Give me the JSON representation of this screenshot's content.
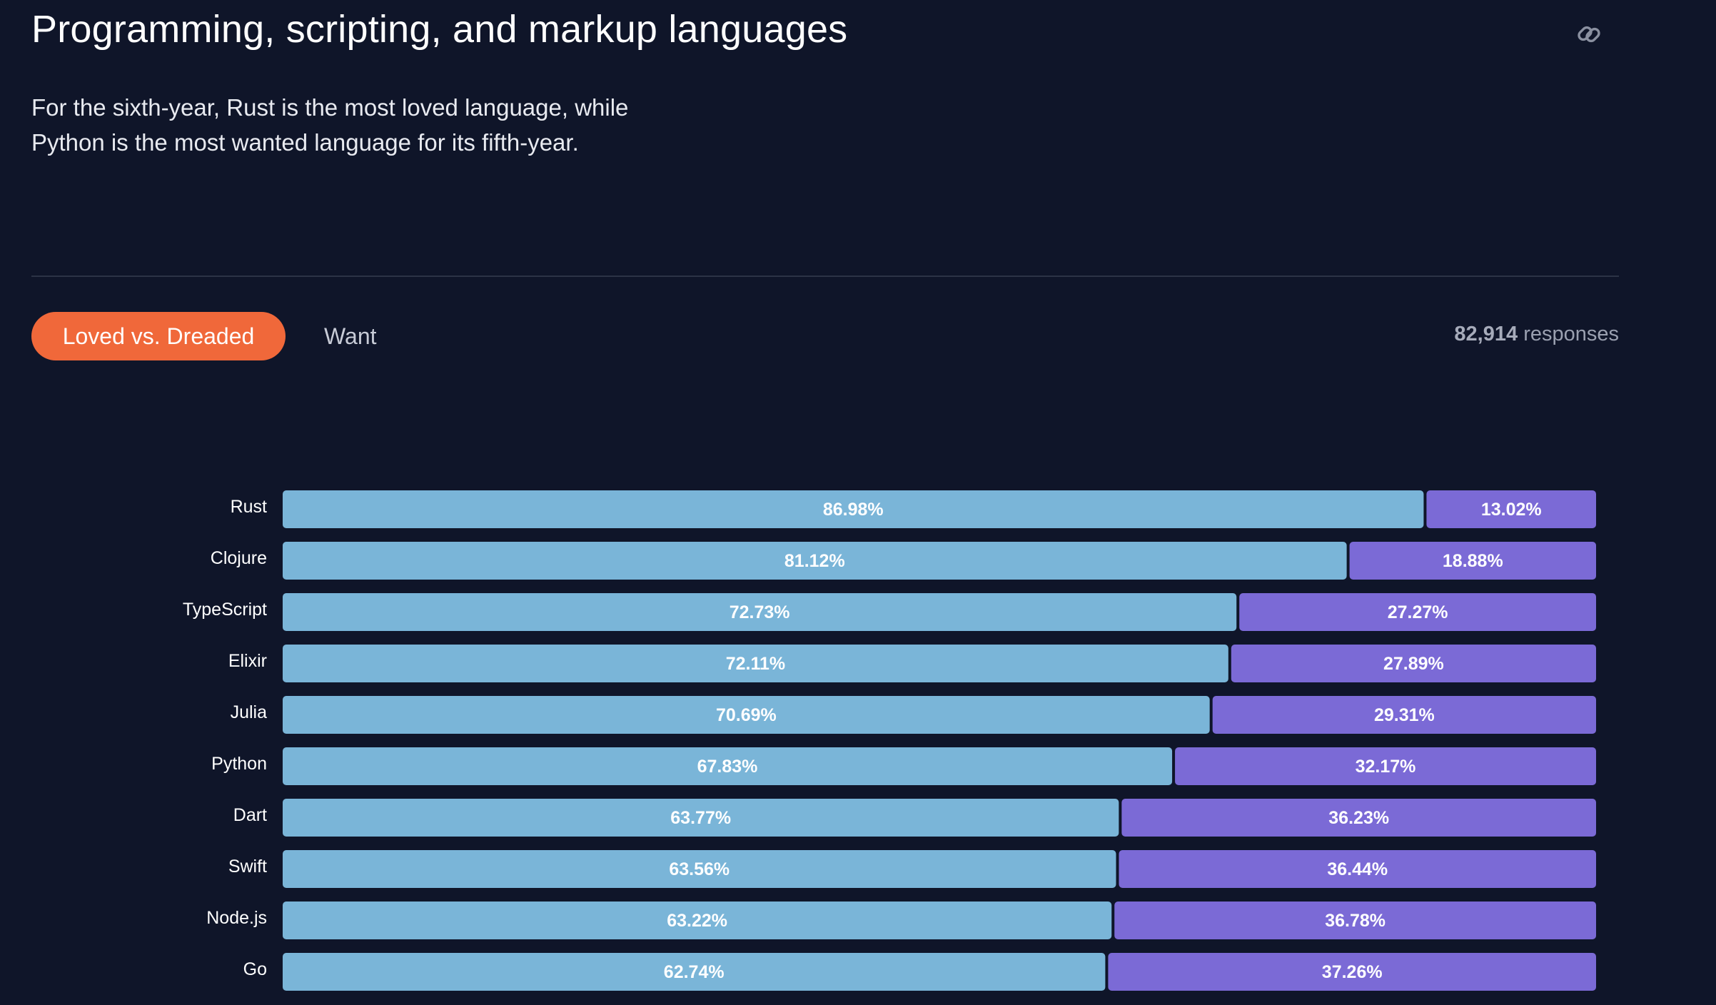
{
  "header": {
    "title": "Programming, scripting, and markup languages",
    "link_icon": "link-icon",
    "description": "For the sixth-year, Rust is the most loved language, while Python is the most wanted language for its fifth-year."
  },
  "tabs": [
    {
      "label": "Loved vs. Dreaded",
      "active": true
    },
    {
      "label": "Want",
      "active": false
    }
  ],
  "responses": {
    "count": "82,914",
    "label": "responses"
  },
  "colors": {
    "background": "#0f1529",
    "loved": "#7ab5d8",
    "dreaded": "#7b6ad6",
    "accent": "#f0683a"
  },
  "chart_data": {
    "type": "bar",
    "orientation": "horizontal",
    "stacked": true,
    "categories": [
      "Rust",
      "Clojure",
      "TypeScript",
      "Elixir",
      "Julia",
      "Python",
      "Dart",
      "Swift",
      "Node.js",
      "Go"
    ],
    "series": [
      {
        "values": [
          86.98,
          81.12,
          72.73,
          72.11,
          70.69,
          67.83,
          63.77,
          63.56,
          63.22,
          62.74
        ],
        "color": "#7ab5d8"
      },
      {
        "values": [
          13.02,
          18.88,
          27.27,
          27.89,
          29.31,
          32.17,
          36.23,
          36.44,
          36.78,
          37.26
        ],
        "color": "#7b6ad6"
      }
    ],
    "value_suffix": "%",
    "xlim": [
      0,
      100
    ]
  }
}
